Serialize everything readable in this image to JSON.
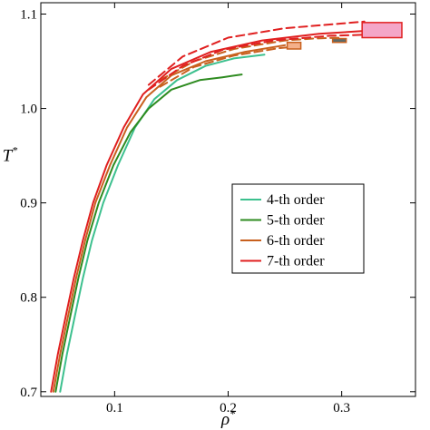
{
  "chart_data": {
    "type": "line",
    "xlabel": "ρ",
    "xlabel_sup": "*",
    "ylabel": "T",
    "ylabel_sup": "*",
    "xlim": [
      0.035,
      0.365
    ],
    "ylim": [
      0.695,
      1.112
    ],
    "xticks": [
      {
        "value": 0.1,
        "label": "0.1"
      },
      {
        "value": 0.2,
        "label": "0.2"
      },
      {
        "value": 0.3,
        "label": "0.3"
      }
    ],
    "yticks": [
      {
        "value": 0.7,
        "label": "0.7"
      },
      {
        "value": 0.8,
        "label": "0.8"
      },
      {
        "value": 0.9,
        "label": "0.9"
      },
      {
        "value": 1.0,
        "label": "1.0"
      },
      {
        "value": 1.1,
        "label": "1.1"
      }
    ],
    "grid": false,
    "legend_position": "center-right",
    "series": [
      {
        "name": "4-th order",
        "color": "#3cc08e",
        "lines": [
          [
            [
              0.052,
              0.7
            ],
            [
              0.058,
              0.74
            ],
            [
              0.065,
              0.78
            ],
            [
              0.072,
              0.82
            ],
            [
              0.08,
              0.86
            ],
            [
              0.09,
              0.9
            ],
            [
              0.103,
              0.94
            ],
            [
              0.118,
              0.98
            ],
            [
              0.135,
              1.01
            ],
            [
              0.155,
              1.03
            ],
            [
              0.18,
              1.045
            ],
            [
              0.205,
              1.053
            ],
            [
              0.232,
              1.057
            ]
          ]
        ],
        "boxes": []
      },
      {
        "name": "5-th order",
        "color": "#2e8b20",
        "lines": [
          [
            [
              0.048,
              0.7
            ],
            [
              0.054,
              0.74
            ],
            [
              0.061,
              0.78
            ],
            [
              0.068,
              0.82
            ],
            [
              0.076,
              0.86
            ],
            [
              0.086,
              0.9
            ],
            [
              0.099,
              0.94
            ],
            [
              0.114,
              0.975
            ],
            [
              0.13,
              1.0
            ],
            [
              0.15,
              1.02
            ],
            [
              0.175,
              1.03
            ],
            [
              0.195,
              1.033
            ],
            [
              0.212,
              1.036
            ]
          ]
        ],
        "boxes": []
      },
      {
        "name": "6-th order",
        "color": "#c8601e",
        "lines": [
          [
            [
              0.046,
              0.7
            ],
            [
              0.052,
              0.74
            ],
            [
              0.059,
              0.78
            ],
            [
              0.066,
              0.82
            ],
            [
              0.074,
              0.86
            ],
            [
              0.083,
              0.9
            ],
            [
              0.096,
              0.94
            ],
            [
              0.111,
              0.98
            ],
            [
              0.128,
              1.012
            ],
            [
              0.15,
              1.035
            ],
            [
              0.18,
              1.05
            ],
            [
              0.215,
              1.06
            ],
            [
              0.25,
              1.067
            ]
          ],
          [
            [
              0.14,
              1.03
            ],
            [
              0.17,
              1.05
            ],
            [
              0.205,
              1.063
            ],
            [
              0.25,
              1.072
            ],
            [
              0.275,
              1.074
            ],
            [
              0.3,
              1.075
            ]
          ],
          [
            [
              0.14,
              1.023
            ],
            [
              0.17,
              1.044
            ],
            [
              0.205,
              1.056
            ],
            [
              0.245,
              1.064
            ],
            [
              0.265,
              1.066
            ]
          ]
        ],
        "boxes": [
          {
            "x": [
              0.252,
              0.264
            ],
            "y": [
              1.063,
              1.07
            ],
            "fill": "#f4b08a"
          },
          {
            "x": [
              0.292,
              0.304
            ],
            "y": [
              1.07,
              1.074
            ],
            "fill": "#5a6a6a"
          }
        ]
      },
      {
        "name": "7-th order",
        "color": "#e02020",
        "lines": [
          [
            [
              0.044,
              0.7
            ],
            [
              0.05,
              0.74
            ],
            [
              0.057,
              0.78
            ],
            [
              0.064,
              0.82
            ],
            [
              0.072,
              0.86
            ],
            [
              0.081,
              0.9
            ],
            [
              0.093,
              0.94
            ],
            [
              0.108,
              0.98
            ],
            [
              0.125,
              1.015
            ],
            [
              0.15,
              1.042
            ],
            [
              0.185,
              1.06
            ],
            [
              0.23,
              1.072
            ],
            [
              0.28,
              1.079
            ],
            [
              0.318,
              1.082
            ]
          ],
          [
            [
              0.13,
              1.025
            ],
            [
              0.16,
              1.055
            ],
            [
              0.2,
              1.075
            ],
            [
              0.25,
              1.085
            ],
            [
              0.3,
              1.09
            ],
            [
              0.32,
              1.092
            ]
          ],
          [
            [
              0.13,
              1.02
            ],
            [
              0.16,
              1.045
            ],
            [
              0.195,
              1.062
            ],
            [
              0.24,
              1.072
            ],
            [
              0.29,
              1.077
            ],
            [
              0.318,
              1.078
            ]
          ]
        ],
        "boxes": [
          {
            "x": [
              0.318,
              0.353
            ],
            "y": [
              1.075,
              1.091
            ],
            "fill": "#f4a6c8"
          }
        ]
      }
    ]
  }
}
